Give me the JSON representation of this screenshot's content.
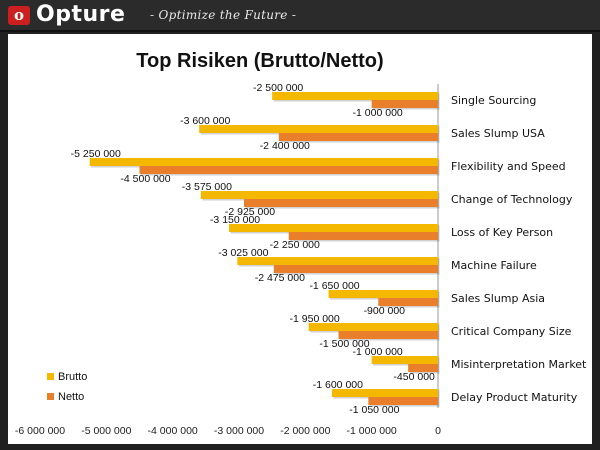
{
  "header": {
    "logo_letter": "o",
    "brand": "Opture",
    "tagline": "- Optimize the Future -"
  },
  "colors": {
    "brutto": "#f5b800",
    "netto": "#e97f2a",
    "header_bg": "#2b2b2b",
    "logo_red": "#cc1f1f"
  },
  "chart_data": {
    "type": "bar",
    "orientation": "horizontal",
    "title": "Top Risiken (Brutto/Netto)",
    "categories": [
      "Single Sourcing",
      "Sales Slump USA",
      "Flexibility and Speed",
      "Change of Technology",
      "Loss of Key Person",
      "Machine Failure",
      "Sales Slump Asia",
      "Critical Company Size",
      "Misinterpretation Market",
      "Delay Product Maturity"
    ],
    "series": [
      {
        "name": "Brutto",
        "color": "#f5b800",
        "values": [
          -2500000,
          -3600000,
          -5250000,
          -3575000,
          -3150000,
          -3025000,
          -1650000,
          -1950000,
          -1000000,
          -1600000
        ],
        "labels": [
          "-2 500 000",
          "-3 600 000",
          "-5 250 000",
          "-3 575 000",
          "-3 150 000",
          "-3 025 000",
          "-1 650 000",
          "-1 950 000",
          "-1 000 000",
          "-1 600 000"
        ]
      },
      {
        "name": "Netto",
        "color": "#e97f2a",
        "values": [
          -1000000,
          -2400000,
          -4500000,
          -2925000,
          -2250000,
          -2475000,
          -900000,
          -1500000,
          -450000,
          -1050000
        ],
        "labels": [
          "-1 000 000",
          "-2 400 000",
          "-4 500 000",
          "-2 925 000",
          "-2 250 000",
          "-2 475 000",
          "-900 000",
          "-1 500 000",
          "-450 000",
          "-1 050 000"
        ]
      }
    ],
    "xlim": [
      -6000000,
      0
    ],
    "xticks": [
      -6000000,
      -5000000,
      -4000000,
      -3000000,
      -2000000,
      -1000000,
      0
    ],
    "xtick_labels": [
      "-6 000 000",
      "-5 000 000",
      "-4 000 000",
      "-3 000 000",
      "-2 000 000",
      "-1 000 000",
      "0"
    ],
    "legend": {
      "position": "bottom-left",
      "entries": [
        "Brutto",
        "Netto"
      ]
    }
  }
}
